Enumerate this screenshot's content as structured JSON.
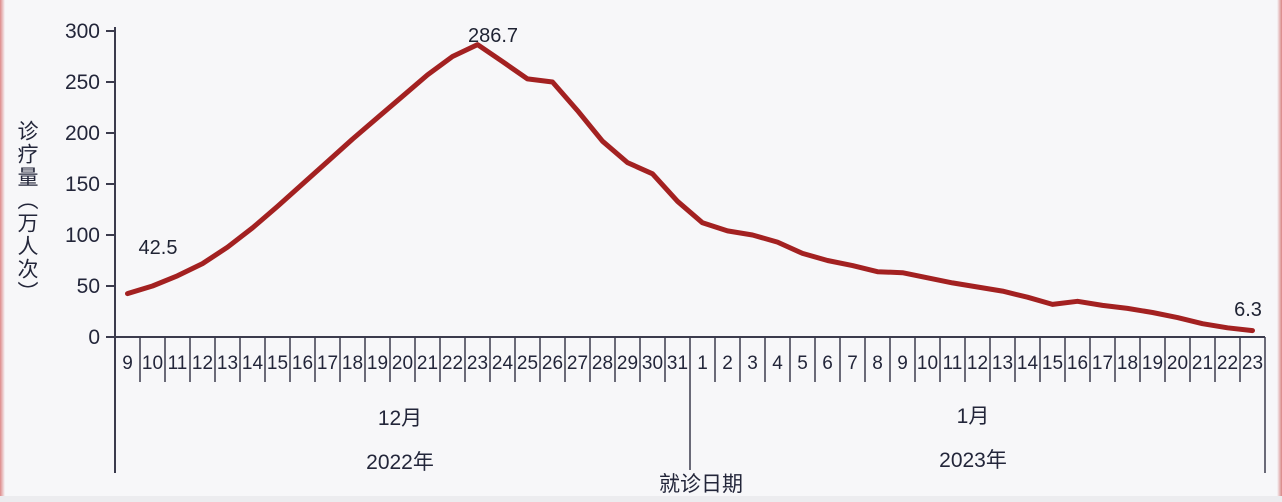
{
  "chart_data": {
    "type": "line",
    "title": "",
    "ylabel": "诊疗量（万人次）",
    "xlabel": "就诊日期",
    "legend": "none",
    "grid": "off",
    "y_axis": {
      "min": 0,
      "max": 300,
      "ticks": [
        0,
        50,
        100,
        150,
        200,
        250,
        300
      ]
    },
    "categories": [
      {
        "month_label": "12月",
        "year_label": "2022年",
        "days": [
          "9",
          "10",
          "11",
          "12",
          "13",
          "14",
          "15",
          "16",
          "17",
          "18",
          "19",
          "20",
          "21",
          "22",
          "23",
          "24",
          "25",
          "26",
          "27",
          "28",
          "29",
          "30",
          "31"
        ]
      },
      {
        "month_label": "1月",
        "year_label": "2023年",
        "days": [
          "1",
          "2",
          "3",
          "4",
          "5",
          "6",
          "7",
          "8",
          "9",
          "10",
          "11",
          "12",
          "13",
          "14",
          "15",
          "16",
          "17",
          "18",
          "19",
          "20",
          "21",
          "22",
          "23"
        ]
      }
    ],
    "series": [
      {
        "name": "诊疗量",
        "values": [
          42.5,
          50,
          60,
          72,
          88,
          107,
          128,
          150,
          172,
          194,
          215,
          236,
          257,
          275,
          286.7,
          270,
          253,
          250,
          222,
          192,
          171,
          160,
          133,
          112,
          104,
          100,
          93,
          82,
          75,
          70,
          64,
          63,
          58,
          53,
          49,
          45,
          39,
          32,
          35,
          31,
          28,
          24,
          19,
          13,
          9,
          6.3
        ]
      }
    ],
    "annotations": {
      "start": {
        "label": "42.5",
        "date": "2022-12-09"
      },
      "peak": {
        "label": "286.7",
        "date": "2022-12-23"
      },
      "end": {
        "label": "6.3",
        "date": "2023-01-23"
      }
    },
    "colors": {
      "line": "#A32121",
      "axis": "#3b3b4d",
      "text": "#23263a"
    }
  }
}
